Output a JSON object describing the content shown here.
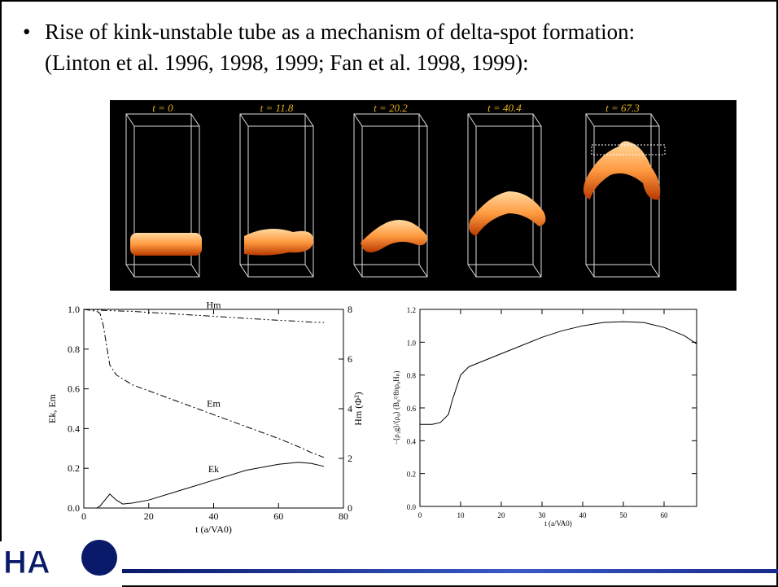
{
  "bullet": {
    "lines": [
      "Rise of kink-unstable tube as a mechanism of delta-spot formation:",
      "(Linton et al. 1996, 1998, 1999; Fan et al. 1998, 1999):"
    ]
  },
  "figure": {
    "panels": [
      "t = 0",
      "t = 11.8",
      "t = 20.2",
      "t = 40.4",
      "t = 67.3"
    ]
  },
  "logo": "HA",
  "chart_data": [
    {
      "type": "line",
      "x_label": "t (a/VA0)",
      "y_label": "Ek, Em",
      "y2_label": "Hm (Φ²)",
      "xlim": [
        0,
        80
      ],
      "xticks": [
        0,
        20,
        40,
        60,
        80
      ],
      "ylim": [
        0,
        1
      ],
      "yticks": [
        {
          "value": 0,
          "label": "0.0"
        },
        0.2,
        0.4,
        0.6,
        0.8,
        {
          "value": 1,
          "label": "1.0"
        }
      ],
      "y2lim": [
        0,
        8
      ],
      "y2ticks": [
        0,
        2,
        4,
        6,
        8
      ],
      "x": [
        0,
        4,
        5,
        6,
        8,
        10,
        12,
        15,
        20,
        30,
        40,
        50,
        60,
        66,
        70,
        74
      ],
      "series": [
        {
          "name": "Hm",
          "axis": "y2",
          "color": "#000",
          "style": "dash-dot-dot",
          "values": [
            8,
            7.98,
            7.97,
            7.96,
            7.95,
            7.94,
            7.93,
            7.92,
            7.88,
            7.8,
            7.72,
            7.64,
            7.56,
            7.52,
            7.49,
            7.47
          ]
        },
        {
          "name": "Em",
          "color": "#000",
          "style": "dash-dot",
          "values": [
            1,
            0.99,
            0.98,
            0.92,
            0.72,
            0.67,
            0.65,
            0.62,
            0.59,
            0.53,
            0.47,
            0.41,
            0.35,
            0.31,
            0.28,
            0.255
          ]
        },
        {
          "name": "Ek",
          "color": "#000",
          "style": "solid",
          "values": [
            0,
            0,
            0.01,
            0.03,
            0.07,
            0.04,
            0.02,
            0.025,
            0.04,
            0.09,
            0.14,
            0.19,
            0.22,
            0.23,
            0.225,
            0.21
          ]
        }
      ]
    },
    {
      "type": "line",
      "x_label": "t (a/VA0)",
      "y_label": "−⟨ρ₁g⟩/⟨ρ₀⟩  (B₀²/8πρ₀Hₚ)",
      "xlim": [
        0,
        68
      ],
      "xticks": [
        0,
        10,
        20,
        30,
        40,
        50,
        60
      ],
      "ylim": [
        0,
        1.2
      ],
      "yticks": [
        {
          "value": 0,
          "label": "0.0"
        },
        0.2,
        0.4,
        0.6,
        0.8,
        {
          "value": 1,
          "label": "1.0"
        },
        1.2
      ],
      "x": [
        0,
        3,
        5,
        7,
        8,
        10,
        12,
        15,
        20,
        25,
        30,
        35,
        40,
        45,
        50,
        55,
        60,
        65,
        68
      ],
      "series": [
        {
          "color": "#000",
          "style": "solid",
          "values": [
            0.5,
            0.5,
            0.51,
            0.56,
            0.65,
            0.8,
            0.85,
            0.88,
            0.93,
            0.98,
            1.03,
            1.07,
            1.1,
            1.12,
            1.125,
            1.12,
            1.09,
            1.04,
            0.99
          ]
        }
      ]
    }
  ]
}
